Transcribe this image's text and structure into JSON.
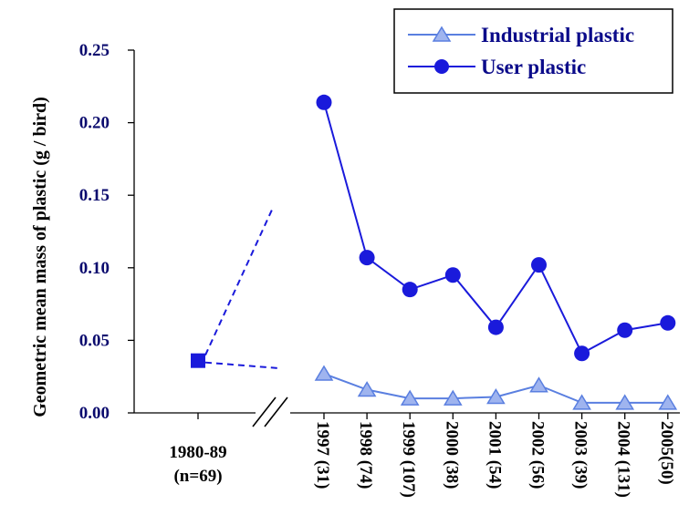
{
  "colors": {
    "series_dark": "#1a1adb",
    "industrial_line": "#5a7fe0",
    "industrial_fill": "#9fb4ef",
    "axis": "#000000",
    "tick_text": "#0b0b6e",
    "legend_text": "#0b0b8a"
  },
  "chart_data": {
    "type": "line",
    "title": "",
    "ylabel": "Geometric mean mass of plastic (g / bird)",
    "xlabel": "",
    "ylim": [
      0,
      0.25
    ],
    "yticks": [
      "0.00",
      "0.05",
      "0.10",
      "0.15",
      "0.20",
      "0.25"
    ],
    "ytick_values": [
      0,
      0.05,
      0.1,
      0.15,
      0.2,
      0.25
    ],
    "grid": false,
    "legend_position": "top-right",
    "axis_break": true,
    "baseline": {
      "label": "1980-89",
      "sublabel": "(n=69)",
      "value": 0.036,
      "marker": "square"
    },
    "categories": [
      "1997 (31)",
      "1998 (74)",
      "1999 (107)",
      "2000 (38)",
      "2001 (54)",
      "2002 (56)",
      "2003 (39)",
      "2004 (131)",
      "2005(50)"
    ],
    "series": [
      {
        "name": "Industrial plastic",
        "marker": "triangle",
        "values": [
          0.027,
          0.016,
          0.01,
          0.01,
          0.011,
          0.019,
          0.007,
          0.007,
          0.007
        ]
      },
      {
        "name": "User plastic",
        "marker": "circle",
        "values": [
          0.214,
          0.107,
          0.085,
          0.095,
          0.059,
          0.102,
          0.041,
          0.057,
          0.062
        ]
      }
    ]
  }
}
